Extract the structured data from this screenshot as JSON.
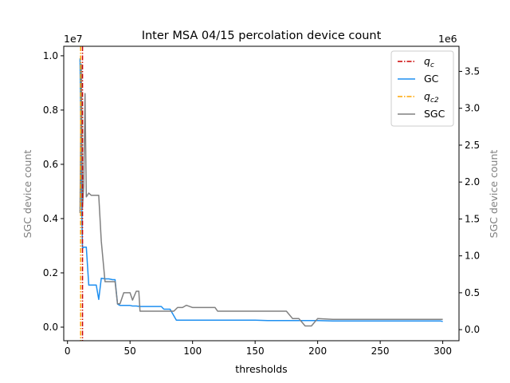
{
  "chart_data": {
    "type": "line",
    "title": "Inter MSA 04/15 percolation device count",
    "xlabel": "thresholds",
    "ylabel_left": "SGC device count",
    "ylabel_right": "SGC device count",
    "xlim": [
      -3,
      313
    ],
    "ylim_left": [
      -0.05,
      1.035
    ],
    "ylim_right": [
      -0.15,
      3.84
    ],
    "left_multiplier": "1e7",
    "right_multiplier": "1e6",
    "x_ticks": [
      0,
      50,
      100,
      150,
      200,
      250,
      300
    ],
    "y_ticks_left": [
      "0.0",
      "0.2",
      "0.4",
      "0.6",
      "0.8",
      "1.0"
    ],
    "y_ticks_right": [
      "0.0",
      "0.5",
      "1.0",
      "1.5",
      "2.0",
      "2.5",
      "3.0",
      "3.5"
    ],
    "grid": false,
    "legend_placement": "top-right",
    "legend": [
      {
        "label": "q",
        "sub": "c",
        "color": "#cc0000",
        "style": "dashdot"
      },
      {
        "label": "GC",
        "sub": "",
        "color": "#1e8ff0",
        "style": "solid"
      },
      {
        "label": "q",
        "sub": "c2",
        "color": "#ffa500",
        "style": "dashdot"
      },
      {
        "label": "SGC",
        "sub": "",
        "color": "#808080",
        "style": "solid"
      }
    ],
    "vlines": [
      {
        "name": "qc",
        "x": 12,
        "color": "#cc0000"
      },
      {
        "name": "qc2",
        "x": 10.5,
        "color": "#ffa500"
      }
    ],
    "series": [
      {
        "name": "GC",
        "axis": "left",
        "color": "#1e8ff0",
        "x": [
          10,
          11,
          12,
          13,
          15,
          17,
          19,
          21,
          23,
          25,
          27,
          30,
          33,
          36,
          38,
          40,
          42,
          45,
          48,
          50,
          52,
          55,
          58,
          65,
          75,
          77,
          82,
          87,
          90,
          100,
          150,
          160,
          170,
          180,
          190,
          200,
          212,
          250,
          298,
          300
        ],
        "y": [
          0.99,
          0.55,
          0.29,
          0.295,
          0.295,
          0.155,
          0.155,
          0.155,
          0.155,
          0.102,
          0.18,
          0.178,
          0.178,
          0.175,
          0.175,
          0.085,
          0.08,
          0.08,
          0.08,
          0.08,
          0.078,
          0.078,
          0.076,
          0.076,
          0.076,
          0.066,
          0.066,
          0.026,
          0.026,
          0.026,
          0.026,
          0.024,
          0.024,
          0.024,
          0.024,
          0.024,
          0.023,
          0.023,
          0.023,
          0.021
        ]
      },
      {
        "name": "SGC",
        "axis": "right",
        "color": "#808080",
        "x": [
          10,
          11,
          12,
          13,
          14,
          15,
          17,
          19,
          21,
          23,
          25,
          27,
          30,
          33,
          36,
          38,
          40,
          42,
          45,
          48,
          50,
          52,
          55,
          57,
          58,
          65,
          75,
          77,
          80,
          85,
          88,
          92,
          95,
          100,
          110,
          118,
          120,
          150,
          160,
          170,
          175,
          180,
          185,
          190,
          195,
          200,
          212,
          250,
          300
        ],
        "y": [
          1.58,
          3.6,
          1.65,
          1.95,
          3.2,
          1.8,
          1.85,
          1.82,
          1.82,
          1.82,
          1.82,
          1.2,
          0.65,
          0.65,
          0.65,
          0.65,
          0.35,
          0.35,
          0.5,
          0.5,
          0.5,
          0.4,
          0.52,
          0.52,
          0.25,
          0.25,
          0.25,
          0.25,
          0.25,
          0.25,
          0.3,
          0.3,
          0.33,
          0.3,
          0.3,
          0.3,
          0.25,
          0.25,
          0.25,
          0.25,
          0.25,
          0.15,
          0.15,
          0.05,
          0.05,
          0.15,
          0.14,
          0.14,
          0.14
        ]
      }
    ]
  }
}
